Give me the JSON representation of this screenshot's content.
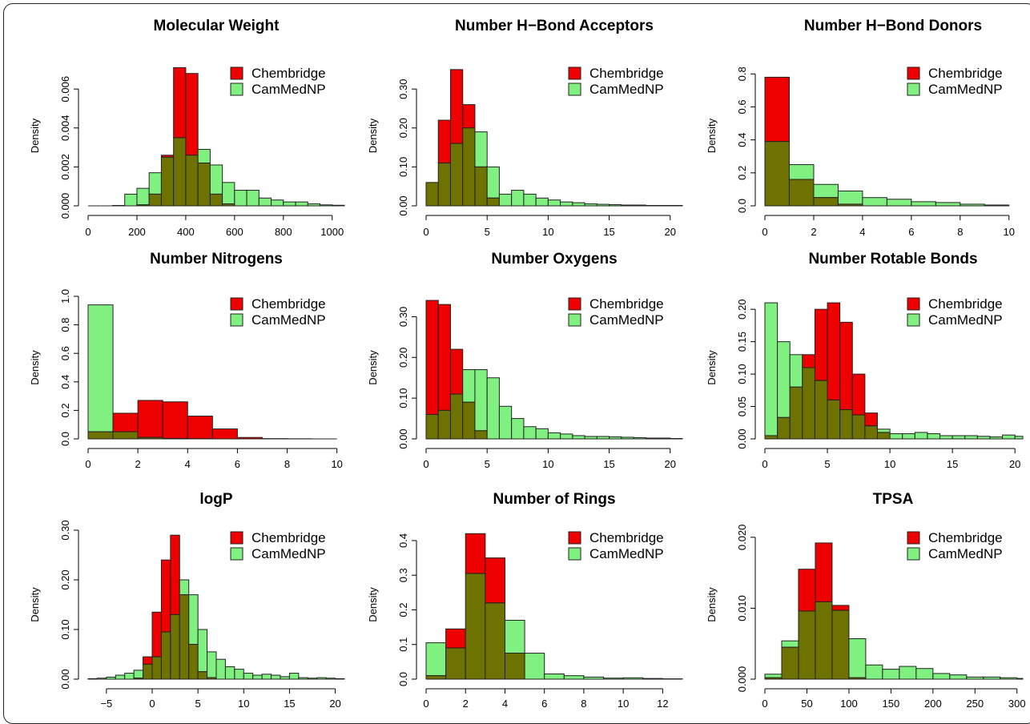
{
  "colors": {
    "chembridge": "#ee0000",
    "cammednp": "#80f080",
    "overlap": "#6e7200"
  },
  "chart_data": [
    {
      "type": "histogram",
      "title": "Molecular Weight",
      "ylabel": "Density",
      "xlim": [
        0,
        1050
      ],
      "ylim": [
        0,
        0.0072
      ],
      "xticks": [
        0,
        200,
        400,
        600,
        800,
        1000
      ],
      "yticks": [
        0.0,
        0.002,
        0.004,
        0.006
      ],
      "ytick_labels": [
        "0.000",
        "0.002",
        "0.004",
        "0.006"
      ],
      "bin_width": 50,
      "bins_start": 0,
      "legend": {
        "position": "top-right",
        "entries": [
          "Chembridge",
          "CamMedNP"
        ]
      },
      "series": [
        {
          "name": "Chembridge",
          "values": [
            0,
            0,
            0,
            0,
            5e-05,
            0.0006,
            0.0026,
            0.0071,
            0.0068,
            0.0022,
            0.0006,
            0.0001,
            0,
            0,
            0,
            0,
            0,
            0,
            0,
            0,
            0
          ]
        },
        {
          "name": "CamMedNP",
          "values": [
            0,
            0,
            2e-05,
            0.0006,
            0.0009,
            0.0017,
            0.0025,
            0.0035,
            0.0026,
            0.0029,
            0.0021,
            0.0012,
            0.0008,
            0.0008,
            0.0004,
            0.0003,
            0.0002,
            0.0002,
            0.0001,
            5e-05,
            3e-05
          ]
        }
      ]
    },
    {
      "type": "histogram",
      "title": "Number H−Bond Acceptors",
      "ylabel": "Density",
      "xlim": [
        0,
        21
      ],
      "ylim": [
        0,
        0.36
      ],
      "xticks": [
        0,
        5,
        10,
        15,
        20
      ],
      "yticks": [
        0.0,
        0.1,
        0.2,
        0.3
      ],
      "ytick_labels": [
        "0.00",
        "0.10",
        "0.20",
        "0.30"
      ],
      "bin_width": 1,
      "bins_start": 0,
      "legend": {
        "position": "top-right",
        "entries": [
          "Chembridge",
          "CamMedNP"
        ]
      },
      "series": [
        {
          "name": "Chembridge",
          "values": [
            0.06,
            0.22,
            0.35,
            0.26,
            0.1,
            0.02,
            0,
            0,
            0,
            0,
            0,
            0,
            0,
            0,
            0,
            0,
            0,
            0,
            0,
            0,
            0
          ]
        },
        {
          "name": "CamMedNP",
          "values": [
            0.06,
            0.11,
            0.16,
            0.2,
            0.19,
            0.1,
            0.03,
            0.04,
            0.03,
            0.02,
            0.015,
            0.01,
            0.008,
            0.005,
            0.004,
            0.003,
            0.002,
            0.002,
            0.001,
            0.001,
            0.001
          ]
        }
      ]
    },
    {
      "type": "histogram",
      "title": "Number H−Bond Donors",
      "ylabel": "Density",
      "xlim": [
        0,
        10.5
      ],
      "ylim": [
        0,
        0.85
      ],
      "xticks": [
        0,
        2,
        4,
        6,
        8,
        10
      ],
      "yticks": [
        0.0,
        0.2,
        0.4,
        0.6,
        0.8
      ],
      "ytick_labels": [
        "0.0",
        "0.2",
        "0.4",
        "0.6",
        "0.8"
      ],
      "bin_width": 1,
      "bins_start": 0,
      "legend": {
        "position": "top-right",
        "entries": [
          "Chembridge",
          "CamMedNP"
        ]
      },
      "series": [
        {
          "name": "Chembridge",
          "values": [
            0.78,
            0.16,
            0.05,
            0.01,
            0,
            0,
            0,
            0,
            0,
            0
          ]
        },
        {
          "name": "CamMedNP",
          "values": [
            0.39,
            0.25,
            0.13,
            0.09,
            0.05,
            0.04,
            0.025,
            0.02,
            0.01,
            0.005
          ]
        }
      ]
    },
    {
      "type": "histogram",
      "title": "Number Nitrogens",
      "ylabel": "Density",
      "xlim": [
        0,
        10.3
      ],
      "ylim": [
        0,
        1.0
      ],
      "xticks": [
        0,
        2,
        4,
        6,
        8,
        10
      ],
      "yticks": [
        0.0,
        0.2,
        0.4,
        0.6,
        0.8,
        1.0
      ],
      "ytick_labels": [
        "0.0",
        "0.2",
        "0.4",
        "0.6",
        "0.8",
        "1.0"
      ],
      "bin_width": 1,
      "bins_start": 0,
      "legend": {
        "position": "top-right",
        "entries": [
          "Chembridge",
          "CamMedNP"
        ]
      },
      "series": [
        {
          "name": "Chembridge",
          "values": [
            0.05,
            0.18,
            0.27,
            0.26,
            0.16,
            0.07,
            0.01,
            0.002,
            0.001,
            0
          ]
        },
        {
          "name": "CamMedNP",
          "values": [
            0.94,
            0.05,
            0.01,
            0.003,
            0.001,
            0,
            0,
            0,
            0,
            0
          ]
        }
      ]
    },
    {
      "type": "histogram",
      "title": "Number Oxygens",
      "ylabel": "Density",
      "xlim": [
        0,
        21
      ],
      "ylim": [
        0,
        0.35
      ],
      "xticks": [
        0,
        5,
        10,
        15,
        20
      ],
      "yticks": [
        0.0,
        0.1,
        0.2,
        0.3
      ],
      "ytick_labels": [
        "0.00",
        "0.10",
        "0.20",
        "0.30"
      ],
      "bin_width": 1,
      "bins_start": 0,
      "legend": {
        "position": "top-right",
        "entries": [
          "Chembridge",
          "CamMedNP"
        ]
      },
      "series": [
        {
          "name": "Chembridge",
          "values": [
            0.34,
            0.33,
            0.22,
            0.09,
            0.02,
            0,
            0,
            0,
            0,
            0,
            0,
            0,
            0,
            0,
            0,
            0,
            0,
            0,
            0,
            0,
            0
          ]
        },
        {
          "name": "CamMedNP",
          "values": [
            0.06,
            0.07,
            0.11,
            0.17,
            0.17,
            0.15,
            0.08,
            0.05,
            0.03,
            0.025,
            0.015,
            0.012,
            0.008,
            0.006,
            0.006,
            0.005,
            0.004,
            0.003,
            0.002,
            0.002,
            0.001
          ]
        }
      ]
    },
    {
      "type": "histogram",
      "title": "Number Rotable Bonds",
      "ylabel": "Density",
      "xlim": [
        0,
        20.5
      ],
      "ylim": [
        0,
        0.22
      ],
      "xticks": [
        0,
        5,
        10,
        15,
        20
      ],
      "yticks": [
        0.0,
        0.05,
        0.1,
        0.15,
        0.2
      ],
      "ytick_labels": [
        "0.00",
        "0.05",
        "0.10",
        "0.15",
        "0.20"
      ],
      "bin_width": 1,
      "bins_start": 0,
      "legend": {
        "position": "top-right",
        "entries": [
          "Chembridge",
          "CamMedNP"
        ]
      },
      "series": [
        {
          "name": "Chembridge",
          "values": [
            0.005,
            0.033,
            0.08,
            0.13,
            0.2,
            0.21,
            0.18,
            0.1,
            0.04,
            0.01,
            0,
            0,
            0,
            0,
            0,
            0,
            0,
            0,
            0,
            0,
            0
          ]
        },
        {
          "name": "CamMedNP",
          "values": [
            0.21,
            0.15,
            0.13,
            0.11,
            0.09,
            0.06,
            0.045,
            0.037,
            0.02,
            0.015,
            0.008,
            0.008,
            0.01,
            0.008,
            0.005,
            0.005,
            0.005,
            0.004,
            0.003,
            0.006,
            0.004
          ]
        }
      ]
    },
    {
      "type": "histogram",
      "title": "logP",
      "ylabel": "Density",
      "xlim": [
        -7,
        21
      ],
      "ylim": [
        0,
        0.3
      ],
      "xticks": [
        -5,
        0,
        5,
        10,
        15,
        20
      ],
      "xtick_labels": [
        "−5",
        "0",
        "5",
        "10",
        "15",
        "20"
      ],
      "yticks": [
        0.0,
        0.1,
        0.2,
        0.3
      ],
      "ytick_labels": [
        "0.00",
        "0.10",
        "0.20",
        "0.30"
      ],
      "bin_width": 1,
      "bins_start": -7,
      "legend": {
        "position": "top-right",
        "entries": [
          "Chembridge",
          "CamMedNP"
        ]
      },
      "series": [
        {
          "name": "Chembridge",
          "values": [
            0,
            0,
            0,
            0,
            0,
            0.002,
            0.045,
            0.135,
            0.24,
            0.29,
            0.17,
            0.07,
            0.015,
            0.003,
            0,
            0,
            0,
            0,
            0,
            0,
            0,
            0,
            0,
            0,
            0,
            0,
            0,
            0
          ]
        },
        {
          "name": "CamMedNP",
          "values": [
            0.001,
            0.002,
            0.004,
            0.008,
            0.012,
            0.018,
            0.03,
            0.045,
            0.095,
            0.13,
            0.2,
            0.17,
            0.1,
            0.055,
            0.04,
            0.025,
            0.02,
            0.012,
            0.008,
            0.01,
            0.008,
            0.005,
            0.012,
            0.003,
            0.002,
            0.003,
            0.002,
            0.001
          ]
        }
      ]
    },
    {
      "type": "histogram",
      "title": "Number of Rings",
      "ylabel": "Density",
      "xlim": [
        0,
        13
      ],
      "ylim": [
        0,
        0.43
      ],
      "xticks": [
        0,
        2,
        4,
        6,
        8,
        10,
        12
      ],
      "yticks": [
        0.0,
        0.1,
        0.2,
        0.3,
        0.4
      ],
      "ytick_labels": [
        "0.0",
        "0.1",
        "0.2",
        "0.3",
        "0.4"
      ],
      "bin_width": 1,
      "bins_start": 0,
      "legend": {
        "position": "top-right",
        "entries": [
          "Chembridge",
          "CamMedNP"
        ]
      },
      "series": [
        {
          "name": "Chembridge",
          "values": [
            0.01,
            0.145,
            0.42,
            0.35,
            0.075,
            0,
            0,
            0,
            0,
            0,
            0,
            0,
            0
          ]
        },
        {
          "name": "CamMedNP",
          "values": [
            0.105,
            0.09,
            0.305,
            0.22,
            0.17,
            0.075,
            0.015,
            0.01,
            0.006,
            0.003,
            0.004,
            0.002,
            0.001
          ]
        }
      ]
    },
    {
      "type": "histogram",
      "title": "TPSA",
      "ylabel": "Density",
      "xlim": [
        0,
        305
      ],
      "ylim": [
        0,
        0.021
      ],
      "xticks": [
        0,
        50,
        100,
        150,
        200,
        250,
        300
      ],
      "yticks": [
        0.0,
        0.01,
        0.02
      ],
      "ytick_labels": [
        "0.000",
        "0.010",
        "0.020"
      ],
      "bin_width": 20,
      "bins_start": 0,
      "legend": {
        "position": "top-right",
        "entries": [
          "Chembridge",
          "CamMedNP"
        ]
      },
      "series": [
        {
          "name": "Chembridge",
          "values": [
            0.0002,
            0.0045,
            0.0155,
            0.0192,
            0.0104,
            0.0002,
            0,
            0,
            0,
            0,
            0,
            0,
            0,
            0,
            0,
            0
          ]
        },
        {
          "name": "CamMedNP",
          "values": [
            0.0007,
            0.0054,
            0.0096,
            0.0109,
            0.0097,
            0.0057,
            0.002,
            0.0014,
            0.0018,
            0.0015,
            0.0008,
            0.0006,
            0.0003,
            0.0003,
            0.0002,
            0.0001
          ]
        }
      ]
    }
  ]
}
